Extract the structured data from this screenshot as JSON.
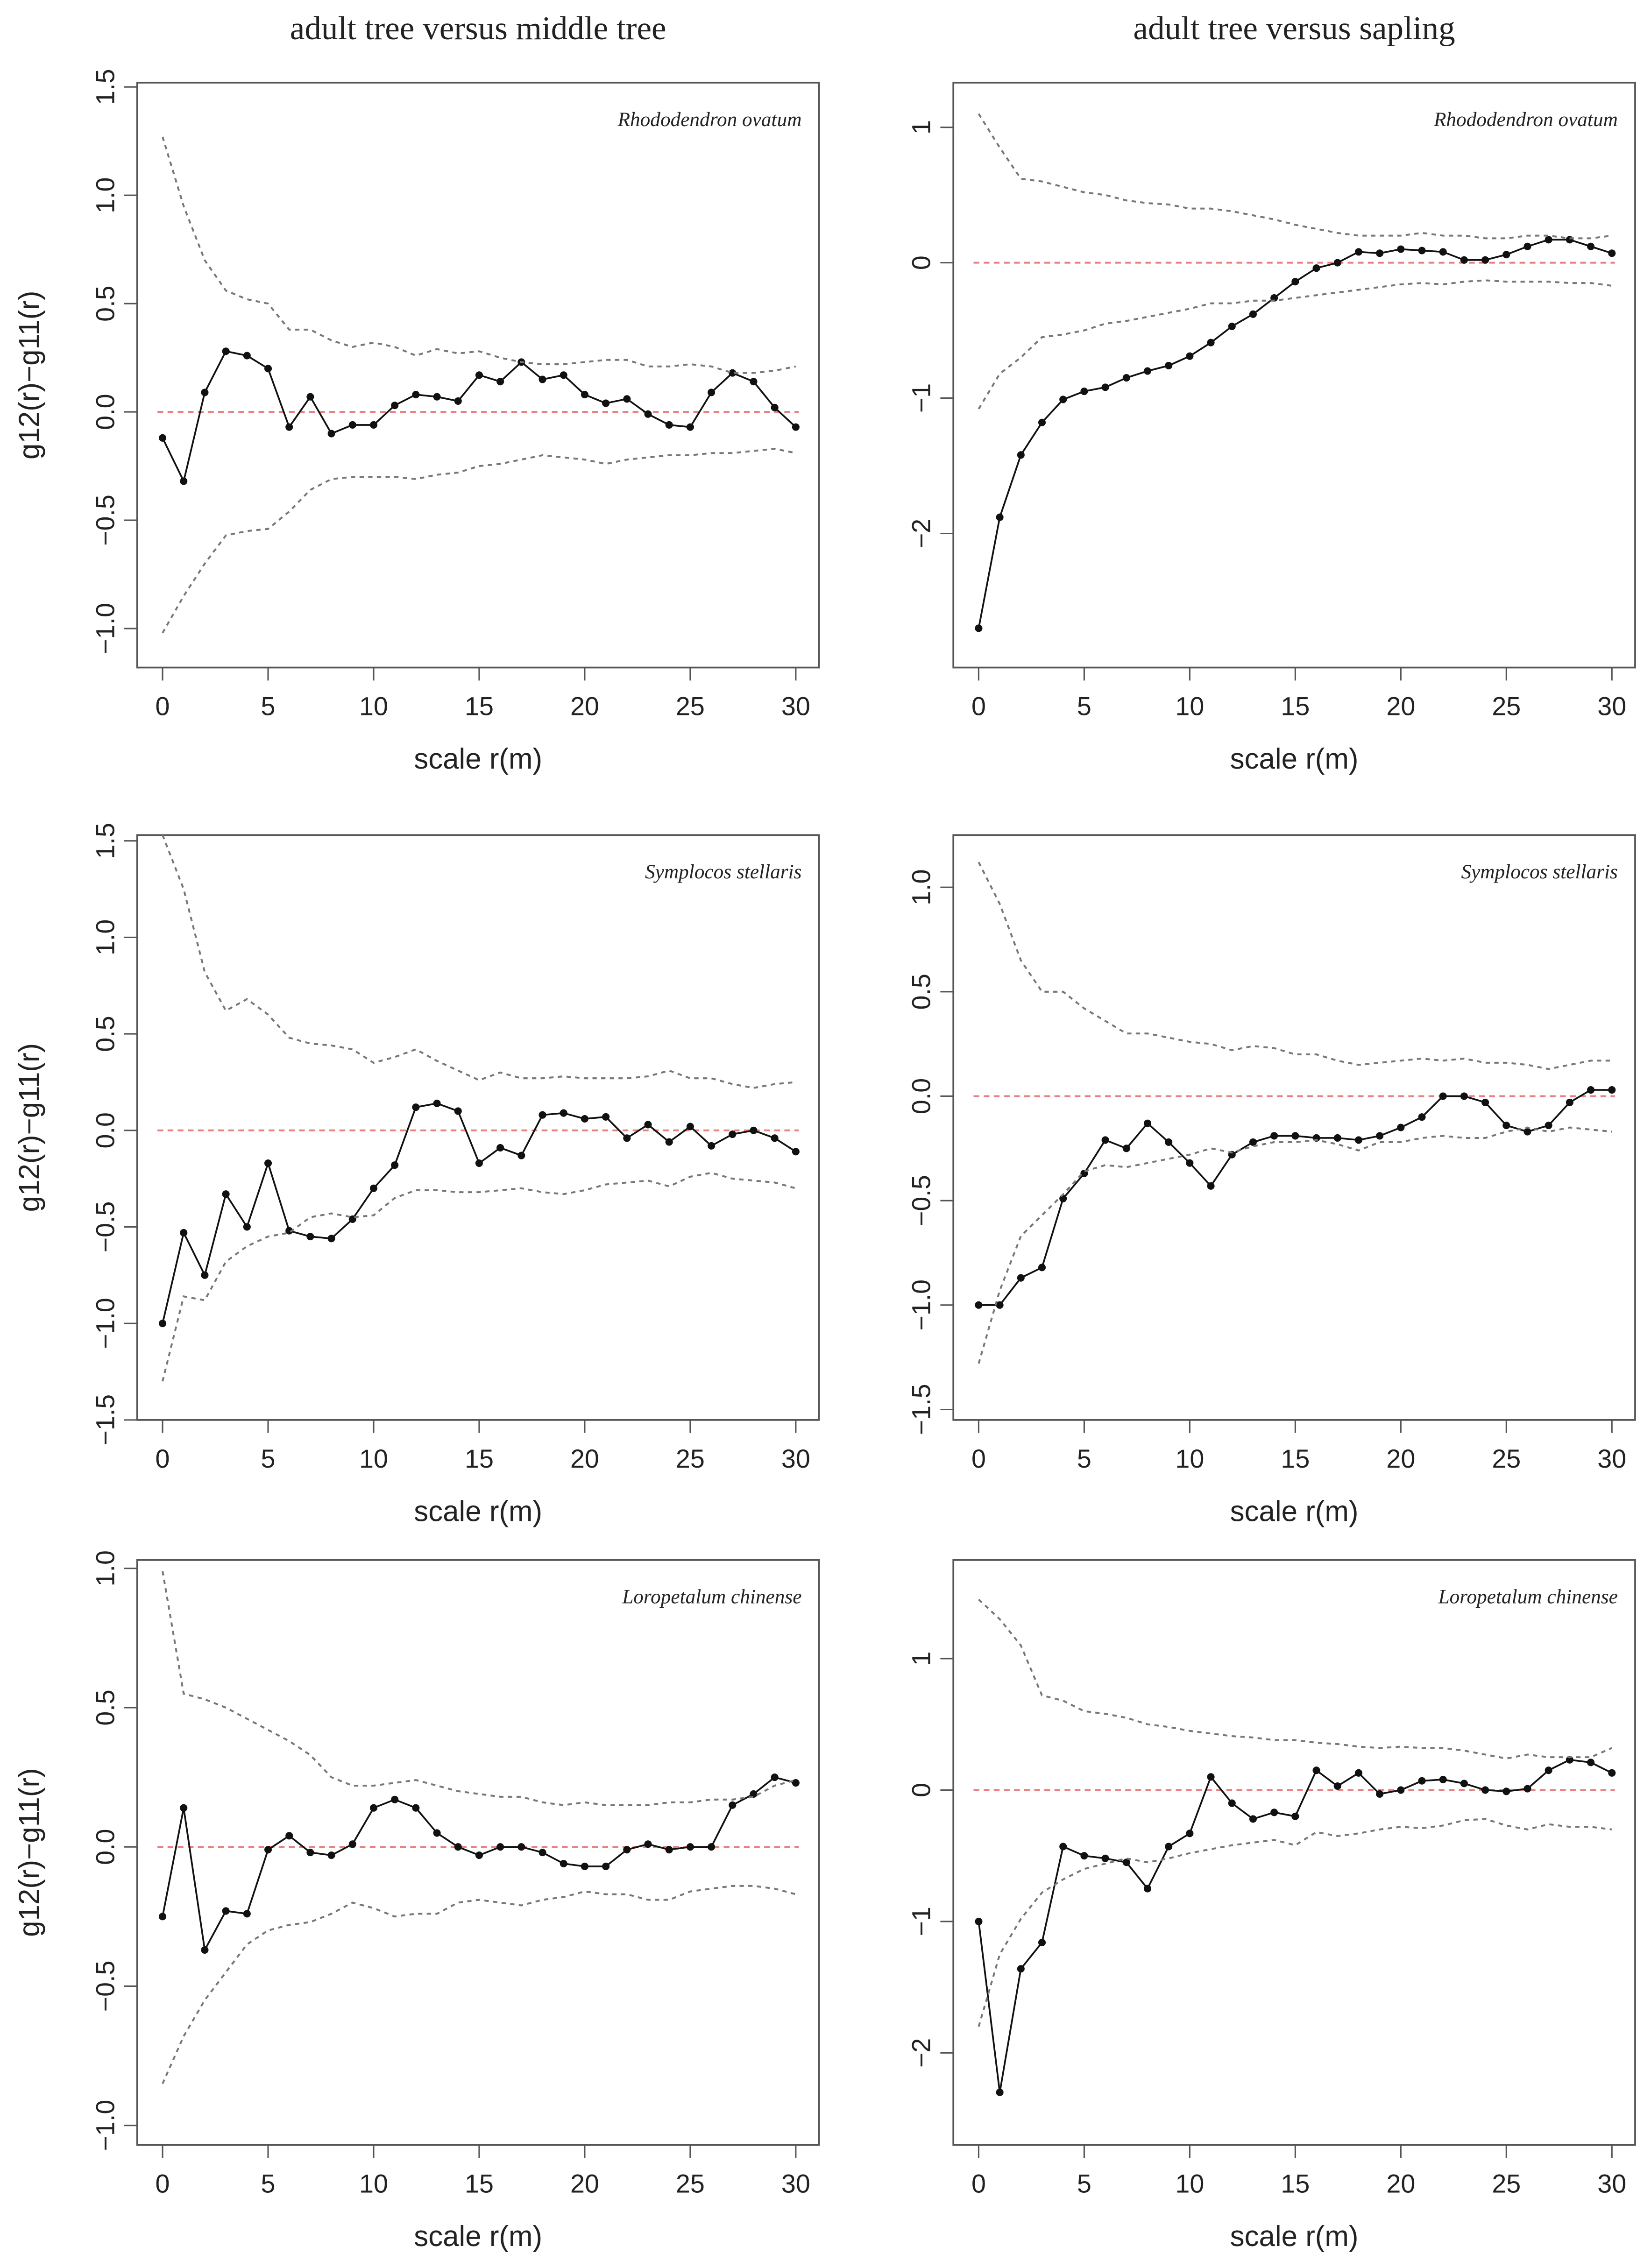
{
  "chart_data": [
    {
      "type": "line",
      "title": "adult tree versus middle tree",
      "annotation": "Rhododendron ovatum",
      "x_label": "scale r(m)",
      "y_label": "g12(r)−g11(r)",
      "x": [
        0,
        1,
        2,
        3,
        4,
        5,
        6,
        7,
        8,
        9,
        10,
        11,
        12,
        13,
        14,
        15,
        16,
        17,
        18,
        19,
        20,
        21,
        22,
        23,
        24,
        25,
        26,
        27,
        28,
        29,
        30
      ],
      "xlim": [
        -1.2,
        31.1
      ],
      "xticks": [
        0,
        5,
        10,
        15,
        20,
        25,
        30
      ],
      "ylim": [
        -1.18,
        1.52
      ],
      "yticks": [
        {
          "value": -1,
          "label": "−1.0"
        },
        {
          "value": -0.5,
          "label": "−0.5"
        },
        {
          "value": 0,
          "label": "0.0"
        },
        0.5,
        {
          "value": 1,
          "label": "1.0"
        },
        1.5
      ],
      "hline": {
        "value": 0,
        "color": "#e8807f"
      },
      "series": [
        {
          "color": "#111111",
          "line": "solid",
          "markers": true,
          "values": [
            -0.12,
            -0.32,
            0.09,
            0.28,
            0.26,
            0.2,
            -0.07,
            0.07,
            -0.1,
            -0.06,
            -0.06,
            0.03,
            0.08,
            0.07,
            0.05,
            0.17,
            0.14,
            0.23,
            0.15,
            0.17,
            0.08,
            0.04,
            0.06,
            -0.01,
            -0.06,
            -0.07,
            0.09,
            0.18,
            0.14,
            0.02,
            -0.07
          ]
        },
        {
          "color": "#777777",
          "line": "dotted",
          "markers": false,
          "values": [
            1.27,
            0.95,
            0.7,
            0.56,
            0.52,
            0.5,
            0.38,
            0.38,
            0.33,
            0.3,
            0.32,
            0.3,
            0.26,
            0.29,
            0.27,
            0.28,
            0.25,
            0.23,
            0.22,
            0.22,
            0.23,
            0.24,
            0.24,
            0.21,
            0.21,
            0.22,
            0.21,
            0.18,
            0.18,
            0.19,
            0.21
          ]
        },
        {
          "color": "#777777",
          "line": "dotted",
          "markers": false,
          "values": [
            -1.02,
            -0.85,
            -0.7,
            -0.57,
            -0.55,
            -0.54,
            -0.46,
            -0.36,
            -0.31,
            -0.3,
            -0.3,
            -0.3,
            -0.31,
            -0.29,
            -0.28,
            -0.25,
            -0.24,
            -0.22,
            -0.2,
            -0.21,
            -0.22,
            -0.24,
            -0.22,
            -0.21,
            -0.2,
            -0.2,
            -0.19,
            -0.19,
            -0.18,
            -0.17,
            -0.19
          ]
        }
      ]
    },
    {
      "type": "line",
      "title": "adult tree versus sapling",
      "annotation": "Rhododendron ovatum",
      "x_label": "scale r(m)",
      "x": [
        0,
        1,
        2,
        3,
        4,
        5,
        6,
        7,
        8,
        9,
        10,
        11,
        12,
        13,
        14,
        15,
        16,
        17,
        18,
        19,
        20,
        21,
        22,
        23,
        24,
        25,
        26,
        27,
        28,
        29,
        30
      ],
      "xlim": [
        -1.2,
        31.1
      ],
      "xticks": [
        0,
        5,
        10,
        15,
        20,
        25,
        30
      ],
      "ylim": [
        -2.99,
        1.33
      ],
      "yticks": [
        {
          "value": -2,
          "label": "−2"
        },
        {
          "value": -1,
          "label": "−1"
        },
        0,
        1
      ],
      "hline": {
        "value": 0,
        "color": "#e8807f"
      },
      "series": [
        {
          "color": "#111111",
          "line": "solid",
          "markers": true,
          "values": [
            -2.7,
            -1.88,
            -1.42,
            -1.18,
            -1.01,
            -0.95,
            -0.92,
            -0.85,
            -0.8,
            -0.76,
            -0.69,
            -0.59,
            -0.47,
            -0.38,
            -0.26,
            -0.14,
            -0.04,
            0.0,
            0.08,
            0.07,
            0.1,
            0.09,
            0.08,
            0.02,
            0.02,
            0.06,
            0.12,
            0.17,
            0.17,
            0.12,
            0.07
          ]
        },
        {
          "color": "#777777",
          "line": "dotted",
          "markers": false,
          "values": [
            1.1,
            0.85,
            0.62,
            0.6,
            0.56,
            0.52,
            0.5,
            0.46,
            0.44,
            0.43,
            0.4,
            0.4,
            0.38,
            0.35,
            0.32,
            0.28,
            0.25,
            0.22,
            0.2,
            0.2,
            0.2,
            0.22,
            0.2,
            0.2,
            0.18,
            0.18,
            0.2,
            0.2,
            0.18,
            0.18,
            0.2
          ]
        },
        {
          "color": "#777777",
          "line": "dotted",
          "markers": false,
          "values": [
            -1.08,
            -0.82,
            -0.7,
            -0.55,
            -0.53,
            -0.5,
            -0.45,
            -0.43,
            -0.4,
            -0.37,
            -0.34,
            -0.3,
            -0.3,
            -0.28,
            -0.28,
            -0.26,
            -0.24,
            -0.22,
            -0.2,
            -0.18,
            -0.16,
            -0.15,
            -0.16,
            -0.14,
            -0.13,
            -0.14,
            -0.14,
            -0.14,
            -0.15,
            -0.15,
            -0.17
          ]
        }
      ]
    },
    {
      "type": "line",
      "annotation": "Symplocos stellaris",
      "x_label": "scale r(m)",
      "y_label": "g12(r)−g11(r)",
      "x": [
        0,
        1,
        2,
        3,
        4,
        5,
        6,
        7,
        8,
        9,
        10,
        11,
        12,
        13,
        14,
        15,
        16,
        17,
        18,
        19,
        20,
        21,
        22,
        23,
        24,
        25,
        26,
        27,
        28,
        29,
        30
      ],
      "xlim": [
        -1.2,
        31.1
      ],
      "xticks": [
        0,
        5,
        10,
        15,
        20,
        25,
        30
      ],
      "ylim": [
        -1.5,
        1.53
      ],
      "yticks": [
        {
          "value": -1.5,
          "label": "−1.5"
        },
        {
          "value": -1,
          "label": "−1.0"
        },
        {
          "value": -0.5,
          "label": "−0.5"
        },
        {
          "value": 0,
          "label": "0.0"
        },
        0.5,
        {
          "value": 1,
          "label": "1.0"
        },
        1.5
      ],
      "hline": {
        "value": 0,
        "color": "#e8807f"
      },
      "series": [
        {
          "color": "#111111",
          "line": "solid",
          "markers": true,
          "values": [
            -1.0,
            -0.53,
            -0.75,
            -0.33,
            -0.5,
            -0.17,
            -0.52,
            -0.55,
            -0.56,
            -0.46,
            -0.3,
            -0.18,
            0.12,
            0.14,
            0.1,
            -0.17,
            -0.09,
            -0.13,
            0.08,
            0.09,
            0.06,
            0.07,
            -0.04,
            0.03,
            -0.06,
            0.02,
            -0.08,
            -0.02,
            0.0,
            -0.04,
            -0.11
          ]
        },
        {
          "color": "#777777",
          "line": "dotted",
          "markers": false,
          "values": [
            1.53,
            1.25,
            0.82,
            0.62,
            0.68,
            0.6,
            0.48,
            0.45,
            0.44,
            0.42,
            0.35,
            0.38,
            0.42,
            0.36,
            0.31,
            0.26,
            0.3,
            0.27,
            0.27,
            0.28,
            0.27,
            0.27,
            0.27,
            0.28,
            0.31,
            0.27,
            0.27,
            0.24,
            0.22,
            0.24,
            0.25
          ]
        },
        {
          "color": "#777777",
          "line": "dotted",
          "markers": false,
          "values": [
            -1.3,
            -0.86,
            -0.88,
            -0.68,
            -0.6,
            -0.55,
            -0.53,
            -0.45,
            -0.43,
            -0.45,
            -0.44,
            -0.35,
            -0.31,
            -0.31,
            -0.32,
            -0.32,
            -0.31,
            -0.3,
            -0.32,
            -0.33,
            -0.31,
            -0.28,
            -0.27,
            -0.26,
            -0.29,
            -0.24,
            -0.22,
            -0.25,
            -0.26,
            -0.27,
            -0.3
          ]
        }
      ]
    },
    {
      "type": "line",
      "annotation": "Symplocos stellaris",
      "x_label": "scale r(m)",
      "x": [
        0,
        1,
        2,
        3,
        4,
        5,
        6,
        7,
        8,
        9,
        10,
        11,
        12,
        13,
        14,
        15,
        16,
        17,
        18,
        19,
        20,
        21,
        22,
        23,
        24,
        25,
        26,
        27,
        28,
        29,
        30
      ],
      "xlim": [
        -1.2,
        31.1
      ],
      "xticks": [
        0,
        5,
        10,
        15,
        20,
        25,
        30
      ],
      "ylim": [
        -1.55,
        1.25
      ],
      "yticks": [
        {
          "value": -1.5,
          "label": "−1.5"
        },
        {
          "value": -1,
          "label": "−1.0"
        },
        {
          "value": -0.5,
          "label": "−0.5"
        },
        {
          "value": 0,
          "label": "0.0"
        },
        0.5,
        {
          "value": 1,
          "label": "1.0"
        }
      ],
      "hline": {
        "value": 0,
        "color": "#e8807f"
      },
      "series": [
        {
          "color": "#111111",
          "line": "solid",
          "markers": true,
          "values": [
            -1.0,
            -1.0,
            -0.87,
            -0.82,
            -0.49,
            -0.37,
            -0.21,
            -0.25,
            -0.13,
            -0.22,
            -0.32,
            -0.43,
            -0.28,
            -0.22,
            -0.19,
            -0.19,
            -0.2,
            -0.2,
            -0.21,
            -0.19,
            -0.15,
            -0.1,
            0.0,
            0.0,
            -0.03,
            -0.14,
            -0.17,
            -0.14,
            -0.03,
            0.03,
            0.03
          ]
        },
        {
          "color": "#777777",
          "line": "dotted",
          "markers": false,
          "values": [
            1.12,
            0.92,
            0.65,
            0.5,
            0.5,
            0.42,
            0.36,
            0.3,
            0.3,
            0.28,
            0.26,
            0.25,
            0.22,
            0.24,
            0.23,
            0.2,
            0.2,
            0.17,
            0.15,
            0.16,
            0.17,
            0.18,
            0.17,
            0.18,
            0.16,
            0.16,
            0.15,
            0.13,
            0.15,
            0.17,
            0.17
          ]
        },
        {
          "color": "#777777",
          "line": "dotted",
          "markers": false,
          "values": [
            -1.28,
            -0.93,
            -0.67,
            -0.57,
            -0.47,
            -0.36,
            -0.33,
            -0.34,
            -0.32,
            -0.3,
            -0.28,
            -0.25,
            -0.27,
            -0.24,
            -0.22,
            -0.22,
            -0.21,
            -0.23,
            -0.26,
            -0.22,
            -0.22,
            -0.2,
            -0.19,
            -0.2,
            -0.2,
            -0.17,
            -0.15,
            -0.17,
            -0.15,
            -0.16,
            -0.17
          ]
        }
      ]
    },
    {
      "type": "line",
      "annotation": "Loropetalum chinense",
      "x_label": "scale r(m)",
      "y_label": "g12(r)−g11(r)",
      "x": [
        0,
        1,
        2,
        3,
        4,
        5,
        6,
        7,
        8,
        9,
        10,
        11,
        12,
        13,
        14,
        15,
        16,
        17,
        18,
        19,
        20,
        21,
        22,
        23,
        24,
        25,
        26,
        27,
        28,
        29,
        30
      ],
      "xlim": [
        -1.2,
        31.1
      ],
      "xticks": [
        0,
        5,
        10,
        15,
        20,
        25,
        30
      ],
      "ylim": [
        -1.07,
        1.03
      ],
      "yticks": [
        {
          "value": -1,
          "label": "−1.0"
        },
        {
          "value": -0.5,
          "label": "−0.5"
        },
        {
          "value": 0,
          "label": "0.0"
        },
        0.5,
        {
          "value": 1,
          "label": "1.0"
        }
      ],
      "hline": {
        "value": 0,
        "color": "#e8807f"
      },
      "series": [
        {
          "color": "#111111",
          "line": "solid",
          "markers": true,
          "values": [
            -0.25,
            0.14,
            -0.37,
            -0.23,
            -0.24,
            -0.01,
            0.04,
            -0.02,
            -0.03,
            0.01,
            0.14,
            0.17,
            0.14,
            0.05,
            0.0,
            -0.03,
            0.0,
            0.0,
            -0.02,
            -0.06,
            -0.07,
            -0.07,
            -0.01,
            0.01,
            -0.01,
            0.0,
            0.0,
            0.15,
            0.19,
            0.25,
            0.23
          ]
        },
        {
          "color": "#777777",
          "line": "dotted",
          "markers": false,
          "values": [
            0.99,
            0.55,
            0.53,
            0.5,
            0.46,
            0.42,
            0.38,
            0.33,
            0.25,
            0.22,
            0.22,
            0.23,
            0.24,
            0.22,
            0.2,
            0.19,
            0.18,
            0.18,
            0.16,
            0.15,
            0.16,
            0.15,
            0.15,
            0.15,
            0.16,
            0.16,
            0.17,
            0.17,
            0.18,
            0.22,
            0.24
          ]
        },
        {
          "color": "#777777",
          "line": "dotted",
          "markers": false,
          "values": [
            -0.85,
            -0.68,
            -0.55,
            -0.45,
            -0.35,
            -0.3,
            -0.28,
            -0.27,
            -0.24,
            -0.2,
            -0.22,
            -0.25,
            -0.24,
            -0.24,
            -0.2,
            -0.19,
            -0.2,
            -0.21,
            -0.19,
            -0.18,
            -0.16,
            -0.17,
            -0.17,
            -0.19,
            -0.19,
            -0.16,
            -0.15,
            -0.14,
            -0.14,
            -0.15,
            -0.17
          ]
        }
      ]
    },
    {
      "type": "line",
      "annotation": "Loropetalum chinense",
      "x_label": "scale r(m)",
      "x": [
        0,
        1,
        2,
        3,
        4,
        5,
        6,
        7,
        8,
        9,
        10,
        11,
        12,
        13,
        14,
        15,
        16,
        17,
        18,
        19,
        20,
        21,
        22,
        23,
        24,
        25,
        26,
        27,
        28,
        29,
        30
      ],
      "xlim": [
        -1.2,
        31.1
      ],
      "xticks": [
        0,
        5,
        10,
        15,
        20,
        25,
        30
      ],
      "ylim": [
        -2.7,
        1.75
      ],
      "yticks": [
        {
          "value": -2,
          "label": "−2"
        },
        {
          "value": -1,
          "label": "−1"
        },
        0,
        1
      ],
      "hline": {
        "value": 0,
        "color": "#e8807f"
      },
      "series": [
        {
          "color": "#111111",
          "line": "solid",
          "markers": true,
          "values": [
            -1.0,
            -2.3,
            -1.36,
            -1.16,
            -0.43,
            -0.5,
            -0.52,
            -0.55,
            -0.75,
            -0.43,
            -0.33,
            0.1,
            -0.1,
            -0.22,
            -0.17,
            -0.2,
            0.15,
            0.03,
            0.13,
            -0.03,
            0.0,
            0.07,
            0.08,
            0.05,
            0.0,
            -0.01,
            0.01,
            0.15,
            0.23,
            0.21,
            0.13
          ]
        },
        {
          "color": "#777777",
          "line": "dotted",
          "markers": false,
          "values": [
            1.45,
            1.3,
            1.1,
            0.72,
            0.68,
            0.6,
            0.58,
            0.55,
            0.5,
            0.48,
            0.45,
            0.43,
            0.41,
            0.4,
            0.38,
            0.38,
            0.36,
            0.35,
            0.33,
            0.32,
            0.33,
            0.32,
            0.32,
            0.3,
            0.27,
            0.24,
            0.27,
            0.25,
            0.25,
            0.25,
            0.32
          ]
        },
        {
          "color": "#777777",
          "line": "dotted",
          "markers": false,
          "values": [
            -1.8,
            -1.25,
            -0.98,
            -0.78,
            -0.68,
            -0.6,
            -0.56,
            -0.52,
            -0.55,
            -0.52,
            -0.48,
            -0.45,
            -0.42,
            -0.4,
            -0.38,
            -0.42,
            -0.32,
            -0.35,
            -0.33,
            -0.3,
            -0.28,
            -0.29,
            -0.27,
            -0.23,
            -0.22,
            -0.27,
            -0.3,
            -0.26,
            -0.28,
            -0.28,
            -0.3
          ]
        }
      ]
    }
  ]
}
